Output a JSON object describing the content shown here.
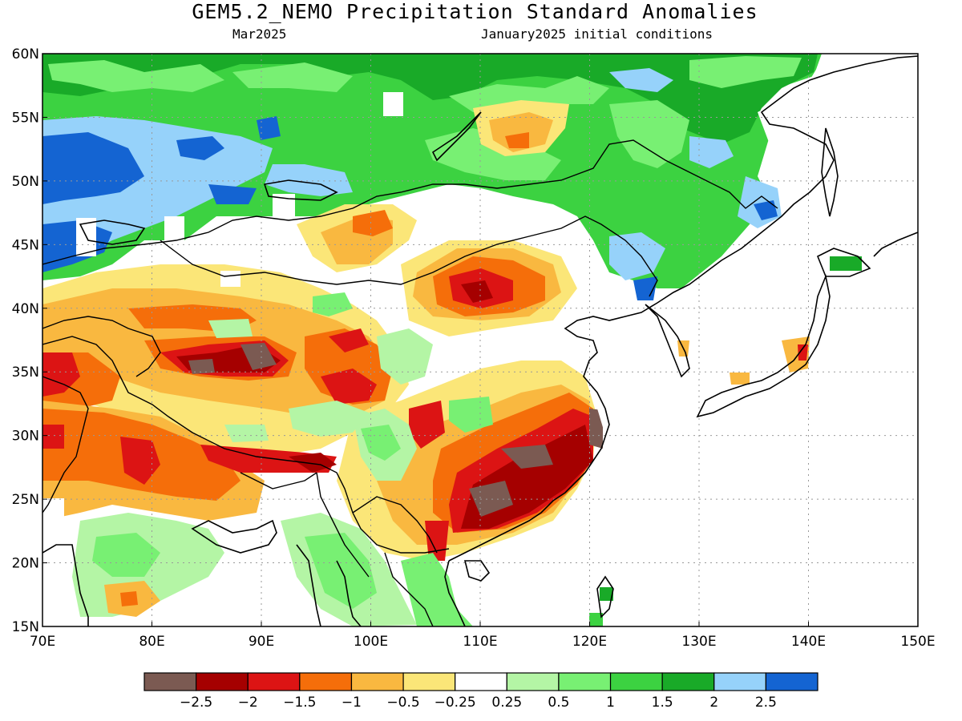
{
  "title": "GEM5.2_NEMO Precipitation Standard Anomalies",
  "valid_month": "Mar2025",
  "init_conditions": "January2025 initial conditions",
  "map": {
    "lon_range": [
      70,
      150
    ],
    "lat_range": [
      15,
      60
    ],
    "lon_labels": [
      "70E",
      "80E",
      "90E",
      "100E",
      "110E",
      "120E",
      "130E",
      "140E",
      "150E"
    ],
    "lat_labels": [
      "15N",
      "20N",
      "25N",
      "30N",
      "35N",
      "40N",
      "45N",
      "50N",
      "55N",
      "60N"
    ],
    "gridlines": "dotted",
    "coastlines": true,
    "country_borders": true
  },
  "colorbar": {
    "colors": [
      "#7b5a52",
      "#a50000",
      "#dc1414",
      "#f56e0a",
      "#f9b840",
      "#fbe678",
      "#ffffff",
      "#b4f5a5",
      "#78f073",
      "#3cd241",
      "#19aa28",
      "#96d2fa",
      "#1464d2"
    ],
    "tick_labels": [
      "-2.5",
      "-2",
      "-1.5",
      "-1",
      "-0.5",
      "-0.25",
      "0.25",
      "0.5",
      "1",
      "1.5",
      "2",
      "2.5"
    ]
  },
  "anomaly_regions": [
    {
      "name": "northwest-siberia",
      "sign": "wet",
      "level": 2.5
    },
    {
      "name": "northern-mongolia-siberia",
      "sign": "wet",
      "level": 1.5
    },
    {
      "name": "northeast-china",
      "sign": "wet",
      "level": 1.5
    },
    {
      "name": "southeast-india",
      "sign": "wet",
      "level": 0.5
    },
    {
      "name": "central-mongolia",
      "sign": "dry",
      "level": -1.5
    },
    {
      "name": "western-tibet",
      "sign": "dry",
      "level": -2.5
    },
    {
      "name": "northern-india",
      "sign": "dry",
      "level": -1.5
    },
    {
      "name": "south-china",
      "sign": "dry",
      "level": -2.5
    },
    {
      "name": "east-china",
      "sign": "dry",
      "level": -2.5
    }
  ]
}
